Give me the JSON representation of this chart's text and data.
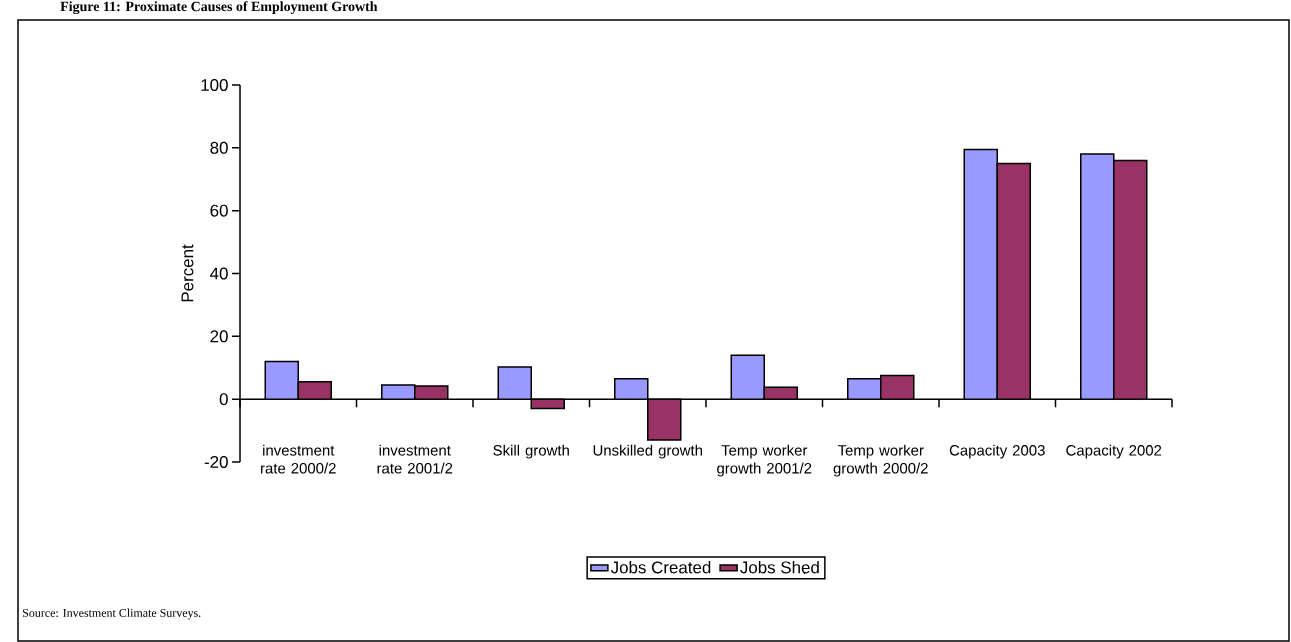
{
  "chart_data": {
    "type": "bar",
    "title": "Figure 11: Proximate Causes of Employment Growth",
    "ylabel": "Percent",
    "categories": [
      "investment rate 2000/2",
      "investment rate 2001/2",
      "Skill growth",
      "Unskilled growth",
      "Temp worker growth 2001/2",
      "Temp worker growth 2000/2",
      "Capacity 2003",
      "Capacity 2002"
    ],
    "series": [
      {
        "name": "Jobs Created",
        "color": "#9999ff",
        "values": [
          12,
          4.5,
          10.2,
          6.5,
          14,
          6.5,
          79.5,
          78
        ]
      },
      {
        "name": "Jobs Shed",
        "color": "#993366",
        "values": [
          5.5,
          4.2,
          -3,
          -13,
          3.8,
          7.5,
          75,
          76
        ]
      }
    ],
    "ylim": [
      -20,
      100
    ],
    "yticks": [
      -20,
      0,
      20,
      40,
      60,
      80,
      100
    ],
    "legend": "bottom",
    "annotations": [
      "Source: Investment Climate Surveys."
    ]
  }
}
